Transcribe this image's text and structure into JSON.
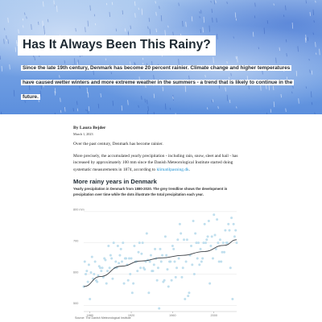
{
  "hero": {
    "title": "Has It Always Been This Rainy?",
    "lede": "Since the late 19th century, Denmark has become 20 percent rainier. Climate change and higher temperatures have caused wetter winters and more extreme weather in the summers - a trend that is likely to continue in the future."
  },
  "article": {
    "byline": "By Laura Bejder",
    "date": "March 1, 2023",
    "para1": "Over the past century, Denmark has become rainier.",
    "para2_text": "More precisely, the accumulated yearly precipitation - including rain, snow, sleet and hail - has increased by approximately 100 mm since the Danish Meteorological Institute started doing systematic measurements in 1874, according to",
    "para2_link": "klimatilpasning.dk",
    "para2_end": "."
  },
  "chart_title": "More rainy years in Denmark",
  "chart_subtitle": "Yearly precipitation in Denmark from 1880-2020. The grey trendline shows the development in precipitation over time while the dots illustrate the total precipitation each year.",
  "chart_source": "Source: The Danish Meteorological Institute",
  "colors": {
    "dot": "#b9dcec",
    "trend": "#3a3f45",
    "grid": "#e3e3e3",
    "link": "#1a8fd1"
  },
  "chart_data": {
    "type": "scatter",
    "title": "More rainy years in Denmark",
    "xlabel": "",
    "ylabel": "",
    "xlim": [
      1874,
      2022
    ],
    "ylim": [
      480,
      810
    ],
    "x_ticks": [
      1880,
      1920,
      1960,
      2000
    ],
    "x_tick_labels": [
      "1880",
      "1920",
      "1960",
      "2000"
    ],
    "y_ticks": [
      500,
      600,
      700,
      800
    ],
    "y_tick_labels": [
      "500",
      "600",
      "700",
      "800 mm"
    ],
    "grid": true,
    "points_x": [
      1874,
      1875,
      1876,
      1877,
      1878,
      1879,
      1880,
      1881,
      1882,
      1883,
      1884,
      1885,
      1886,
      1887,
      1888,
      1889,
      1890,
      1891,
      1892,
      1893,
      1894,
      1895,
      1896,
      1897,
      1898,
      1899,
      1900,
      1901,
      1902,
      1903,
      1904,
      1905,
      1906,
      1907,
      1908,
      1909,
      1910,
      1911,
      1912,
      1913,
      1914,
      1915,
      1916,
      1917,
      1918,
      1919,
      1920,
      1921,
      1922,
      1923,
      1924,
      1925,
      1926,
      1927,
      1928,
      1929,
      1930,
      1931,
      1932,
      1933,
      1934,
      1935,
      1936,
      1937,
      1938,
      1939,
      1940,
      1941,
      1942,
      1943,
      1944,
      1945,
      1946,
      1947,
      1948,
      1949,
      1950,
      1951,
      1952,
      1953,
      1954,
      1955,
      1956,
      1957,
      1958,
      1959,
      1960,
      1961,
      1962,
      1963,
      1964,
      1965,
      1966,
      1967,
      1968,
      1969,
      1970,
      1971,
      1972,
      1973,
      1974,
      1975,
      1976,
      1977,
      1978,
      1979,
      1980,
      1981,
      1982,
      1983,
      1984,
      1985,
      1986,
      1987,
      1988,
      1989,
      1990,
      1991,
      1992,
      1993,
      1994,
      1995,
      1996,
      1997,
      1998,
      1999,
      2000,
      2001,
      2002,
      2003,
      2004,
      2005,
      2006,
      2007,
      2008,
      2009,
      2010,
      2011,
      2012,
      2013,
      2014,
      2015,
      2016,
      2017,
      2018,
      2019,
      2020,
      2021,
      2022
    ],
    "points_y": [
      560,
      640,
      600,
      610,
      575,
      630,
      520,
      605,
      655,
      585,
      600,
      640,
      580,
      575,
      595,
      625,
      620,
      610,
      620,
      590,
      650,
      645,
      570,
      610,
      690,
      620,
      660,
      650,
      585,
      700,
      620,
      640,
      620,
      690,
      635,
      660,
      680,
      640,
      700,
      570,
      650,
      650,
      630,
      580,
      650,
      600,
      650,
      540,
      570,
      690,
      640,
      640,
      610,
      670,
      700,
      620,
      665,
      700,
      620,
      615,
      640,
      730,
      645,
      540,
      640,
      660,
      610,
      610,
      630,
      680,
      650,
      580,
      620,
      490,
      680,
      640,
      660,
      575,
      580,
      720,
      660,
      615,
      560,
      640,
      640,
      580,
      690,
      680,
      640,
      590,
      620,
      710,
      650,
      760,
      730,
      590,
      620,
      710,
      520,
      640,
      710,
      530,
      540,
      660,
      690,
      630,
      770,
      600,
      730,
      700,
      650,
      700,
      630,
      680,
      640,
      650,
      700,
      760,
      700,
      710,
      720,
      770,
      570,
      690,
      720,
      650,
      790,
      725,
      680,
      775,
      700,
      640,
      710,
      640,
      670,
      700,
      670,
      740,
      700,
      700,
      760,
      740,
      620,
      780,
      520,
      760,
      720,
      740,
      700
    ],
    "trend_x": [
      1874,
      1890,
      1910,
      1930,
      1950,
      1970,
      1990,
      2010,
      2022
    ],
    "trend_y": [
      560,
      592,
      625,
      642,
      652,
      660,
      672,
      692,
      710
    ]
  }
}
